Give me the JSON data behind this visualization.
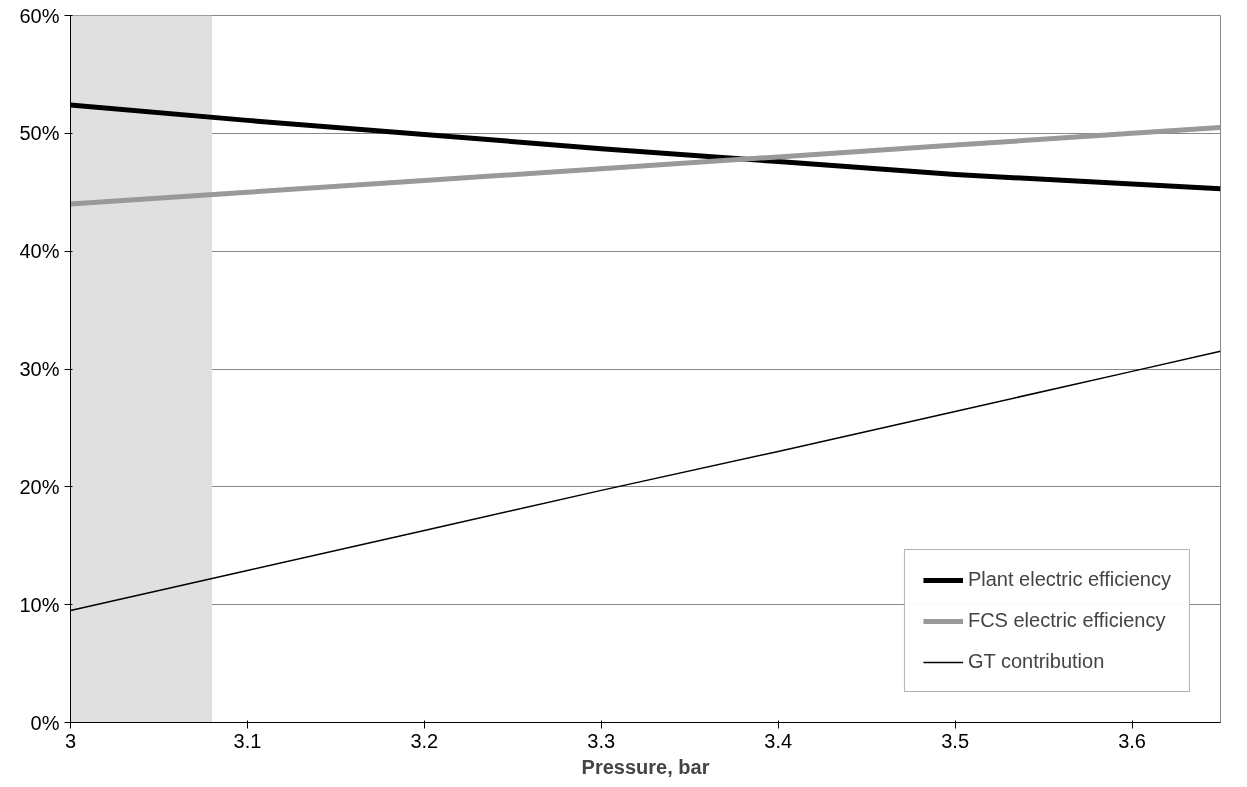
{
  "chart_data": {
    "type": "line",
    "xlabel": "Pressure, bar",
    "x": [
      3.0,
      3.1,
      3.2,
      3.3,
      3.4,
      3.5,
      3.6,
      3.65
    ],
    "series": [
      {
        "name": "Plant electric efficiency",
        "color": "#000000",
        "values": [
          52.4,
          51.1,
          49.9,
          48.7,
          47.6,
          46.5,
          45.7,
          45.3
        ]
      },
      {
        "name": "FCS electric efficiency",
        "color": "#999999",
        "values": [
          44.0,
          45.0,
          46.0,
          47.0,
          48.0,
          49.0,
          50.0,
          50.5
        ]
      },
      {
        "name": "GT contribution",
        "color": "#000000",
        "values": [
          9.5,
          12.9,
          16.3,
          19.7,
          23.0,
          26.4,
          29.8,
          31.5
        ]
      }
    ],
    "xlim": [
      3.0,
      3.65
    ],
    "xticks": [
      3,
      3.1,
      3.2,
      3.3,
      3.4,
      3.5,
      3.6
    ],
    "ylim": [
      0,
      60
    ],
    "yticks": [
      {
        "value": 0,
        "label": "0%"
      },
      {
        "value": 10,
        "label": "10%"
      },
      {
        "value": 20,
        "label": "20%"
      },
      {
        "value": 30,
        "label": "30%"
      },
      {
        "value": 40,
        "label": "40%"
      },
      {
        "value": 50,
        "label": "50%"
      },
      {
        "value": 60,
        "label": "60%"
      }
    ],
    "bands": [
      {
        "axis": "x",
        "from": 3.0,
        "to": 3.08,
        "color": "#e0e0e0"
      }
    ],
    "grid": "y",
    "legend": "bottom right",
    "line_style": "solid",
    "marker": "none"
  }
}
